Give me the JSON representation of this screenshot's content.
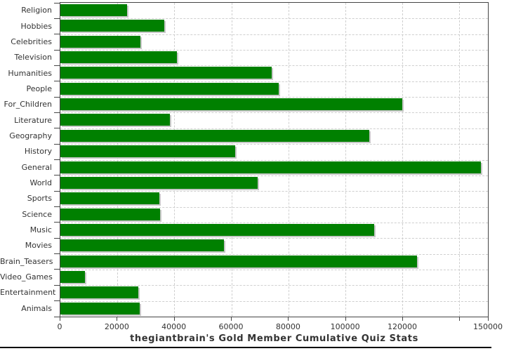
{
  "chart_data": {
    "type": "bar",
    "orientation": "horizontal",
    "title": "thegiantbrain's Gold Member Cumulative Quiz Stats",
    "xlabel": "",
    "ylabel": "",
    "categories": [
      "Religion",
      "Hobbies",
      "Celebrities",
      "Television",
      "Humanities",
      "People",
      "For_Children",
      "Literature",
      "Geography",
      "History",
      "General",
      "World",
      "Sports",
      "Science",
      "Music",
      "Movies",
      "Brain_Teasers",
      "Video_Games",
      "Entertainment",
      "Animals"
    ],
    "values": [
      23300,
      36400,
      28000,
      41000,
      74100,
      76500,
      120000,
      38400,
      108300,
      61300,
      147500,
      69200,
      34700,
      35000,
      110000,
      57500,
      125000,
      8500,
      27400,
      27800
    ],
    "xlim": [
      0,
      150000
    ],
    "x_ticks": [
      0,
      20000,
      40000,
      60000,
      80000,
      100000,
      120000,
      140000,
      150000
    ],
    "x_tick_labels": [
      "0",
      "20000",
      "40000",
      "60000",
      "80000",
      "100000",
      "120000",
      "",
      "150000"
    ],
    "grid": "dashed, vertical at every 20000 and horizontal at category boundaries",
    "legend": "none",
    "colors": {
      "bar": "#008000",
      "bar_shadow": "#c8c8c8",
      "gridline": "#cfcfcf",
      "axis_border": "#454545",
      "text": "#333333",
      "bottom_rule": "#000000"
    }
  }
}
